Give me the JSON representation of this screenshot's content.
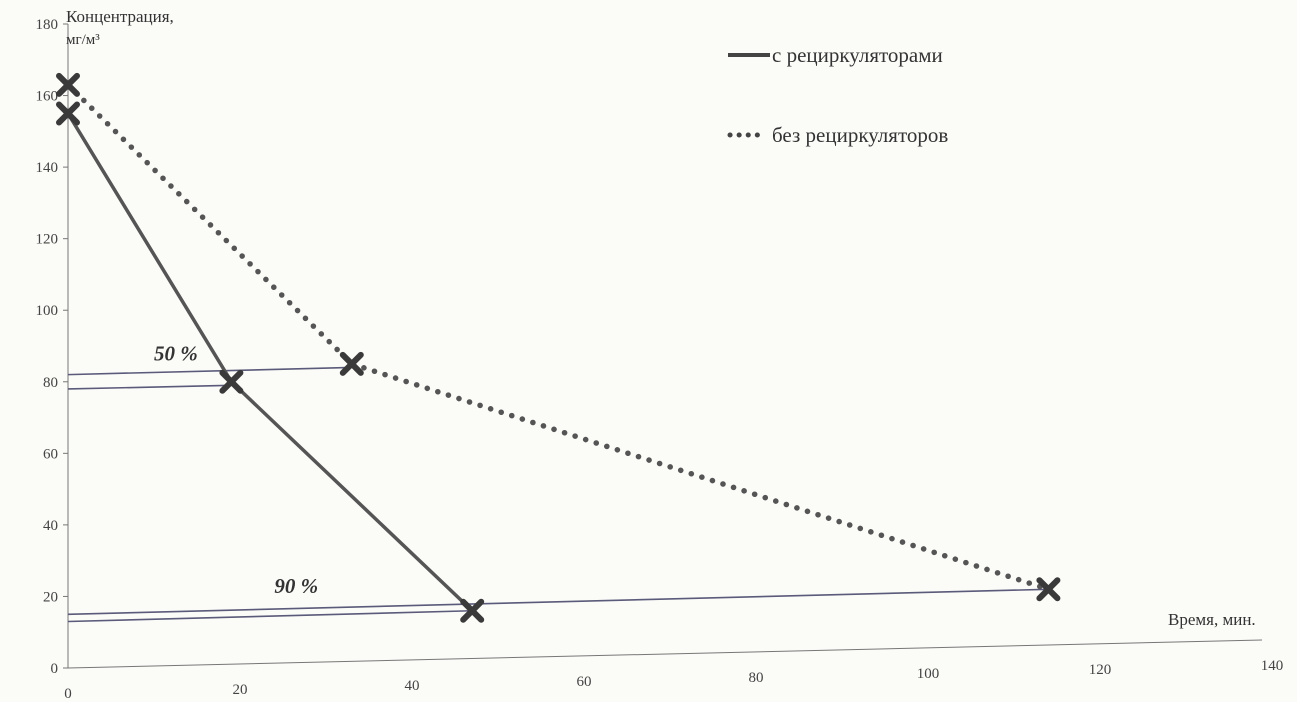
{
  "chart_data": {
    "type": "line",
    "title": "",
    "ylabel": "Концентрация, мг/м³",
    "ylabel_line1": "Концентрация,",
    "ylabel_line2": "мг/м³",
    "xlabel": "Время, мин.",
    "xlim": [
      0,
      140
    ],
    "ylim": [
      0,
      180
    ],
    "xticks": [
      "0",
      "20",
      "40",
      "60",
      "80",
      "100",
      "120",
      "140"
    ],
    "yticks": [
      "0",
      "20",
      "40",
      "60",
      "80",
      "100",
      "120",
      "140",
      "160",
      "180"
    ],
    "grid": false,
    "legend_position": "top-right",
    "series": [
      {
        "name": "с рециркуляторами",
        "style": "solid",
        "color": "#555555",
        "x": [
          0,
          19,
          47
        ],
        "y": [
          155,
          80,
          16
        ]
      },
      {
        "name": "без рециркуляторов",
        "style": "dotted",
        "color": "#555555",
        "x": [
          0,
          33,
          114
        ],
        "y": [
          163,
          85,
          22
        ]
      }
    ],
    "annotations": [
      {
        "label": "50 %",
        "label_at": [
          10,
          86
        ],
        "lines": [
          {
            "x1": 0,
            "y1": 82,
            "x2": 33,
            "y2": 84
          },
          {
            "x1": 0,
            "y1": 78,
            "x2": 19,
            "y2": 79
          }
        ]
      },
      {
        "label": "90 %",
        "label_at": [
          24,
          21
        ],
        "lines": [
          {
            "x1": 0,
            "y1": 15,
            "x2": 114,
            "y2": 22
          },
          {
            "x1": 0,
            "y1": 13,
            "x2": 47,
            "y2": 16
          }
        ]
      }
    ]
  }
}
